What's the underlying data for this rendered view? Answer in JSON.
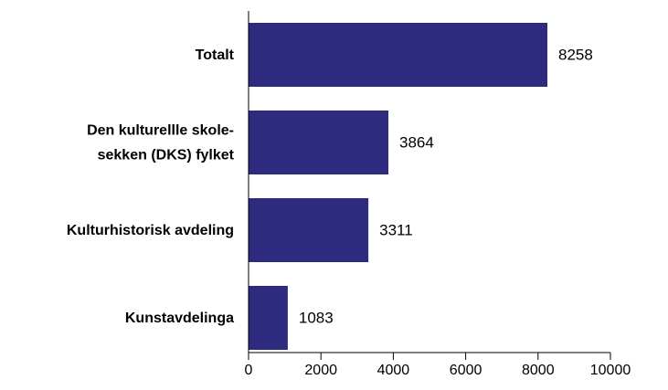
{
  "chart_data": {
    "type": "bar",
    "orientation": "horizontal",
    "categories": [
      [
        "Totalt"
      ],
      [
        "Den kulturellle skole-",
        "sekken (DKS) fylket"
      ],
      [
        "Kulturhistorisk avdeling"
      ],
      [
        "Kunstavdelinga"
      ]
    ],
    "values": [
      8258,
      3864,
      3311,
      1083
    ],
    "value_labels": [
      "8258",
      "3864",
      "3311",
      "1083"
    ],
    "xlim": [
      0,
      10000
    ],
    "xticks": [
      0,
      2000,
      4000,
      6000,
      8000,
      10000
    ],
    "grid": false,
    "bar_color": "#2e2a7e",
    "axis_color": "#000000",
    "text_color": "#000000"
  }
}
